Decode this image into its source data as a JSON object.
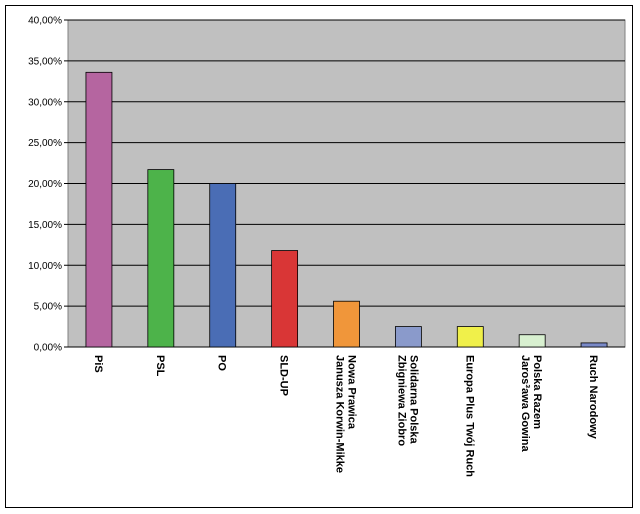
{
  "chart_data": {
    "type": "bar",
    "categories": [
      "PiS",
      "PSL",
      "PO",
      "SLD-UP",
      [
        "Nowa Prawica",
        "Janusza Korwin-Mikke"
      ],
      [
        "Solidarna Polska",
        "Zbigniewa Ziobro"
      ],
      "Europa Plus Twój Ruch",
      [
        "Polska Razem",
        "Jaros³awa Gowina"
      ],
      "Ruch Narodowy"
    ],
    "values": [
      33.6,
      21.7,
      20.0,
      11.8,
      5.6,
      2.5,
      2.5,
      1.5,
      0.5
    ],
    "colors": [
      "#b565a0",
      "#4db34a",
      "#4a6db5",
      "#d93636",
      "#f0963a",
      "#8a9acb",
      "#f0f04a",
      "#d8f0d0",
      "#7a8ac8"
    ],
    "ylim": [
      0,
      40
    ],
    "yticks": [
      {
        "value": 0,
        "label": "0,00%"
      },
      {
        "value": 5,
        "label": "5,00%"
      },
      {
        "value": 10,
        "label": "10,00%"
      },
      {
        "value": 15,
        "label": "15,00%"
      },
      {
        "value": 20,
        "label": "20,00%"
      },
      {
        "value": 25,
        "label": "25,00%"
      },
      {
        "value": 30,
        "label": "30,00%"
      },
      {
        "value": 35,
        "label": "35,00%"
      },
      {
        "value": 40,
        "label": "40,00%"
      }
    ],
    "grid": true
  }
}
